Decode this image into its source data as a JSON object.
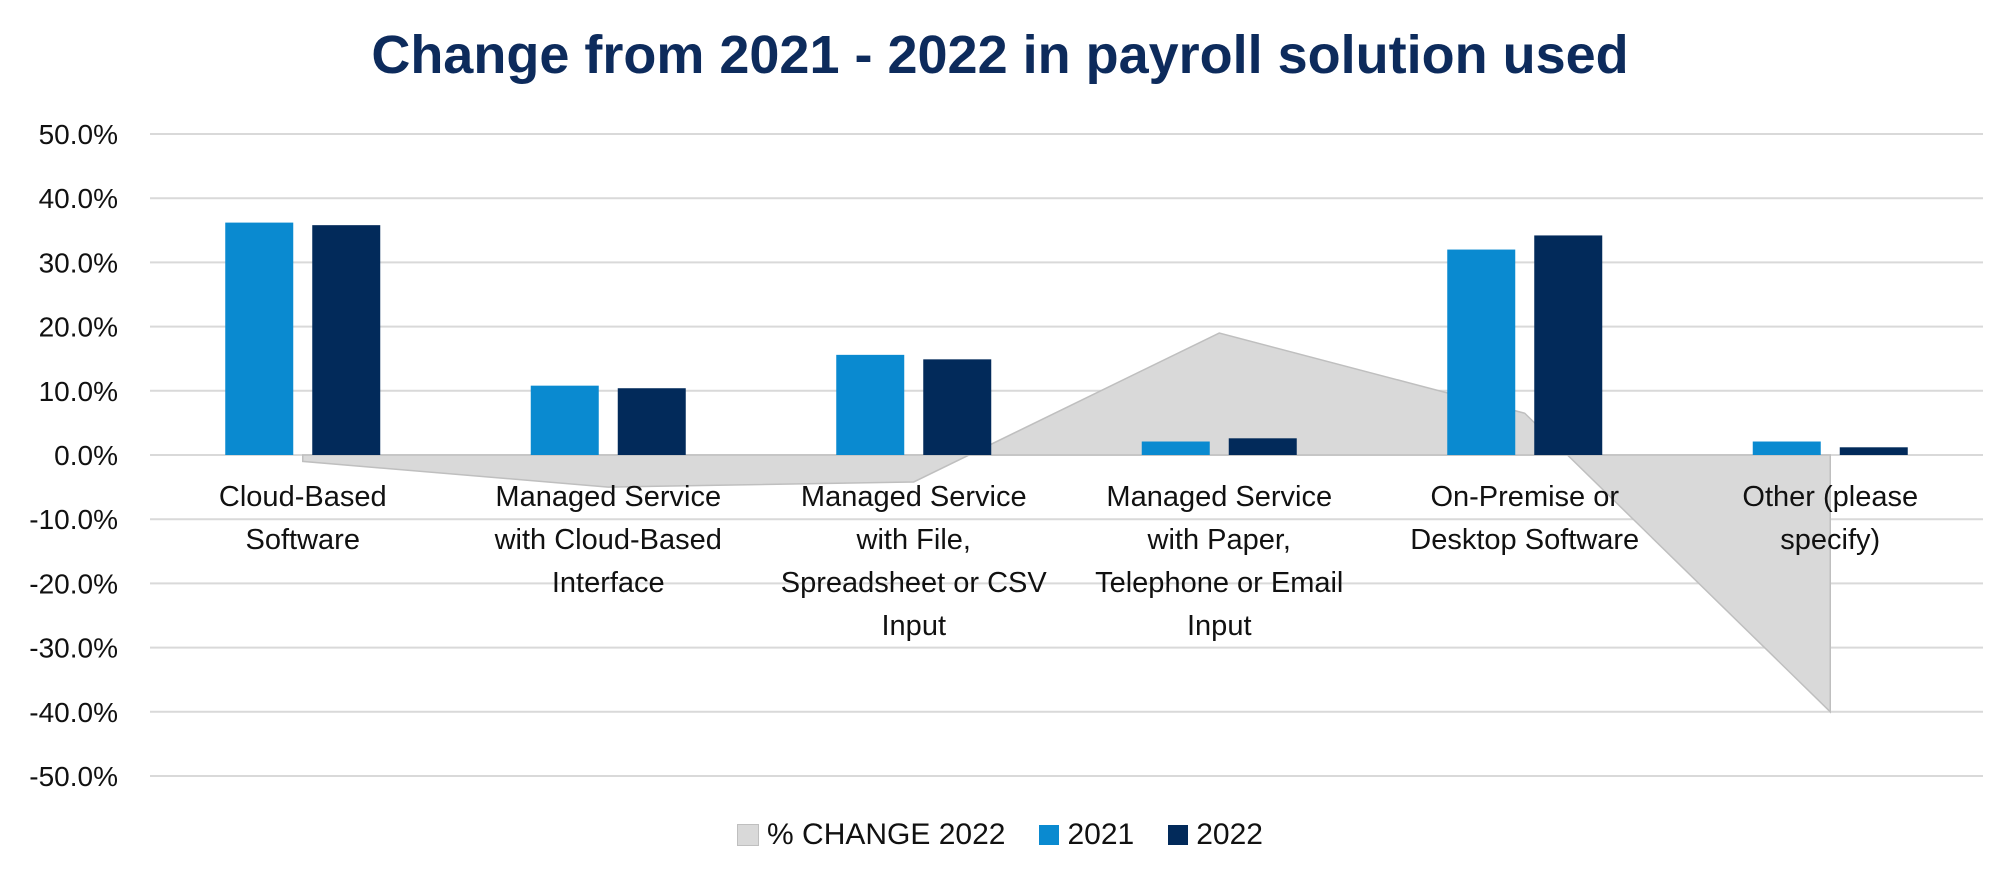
{
  "chart_data": {
    "type": "bar",
    "title": "Change from 2021 - 2022 in payroll solution used",
    "xlabel": "",
    "ylabel": "",
    "ylim": [
      -50,
      50
    ],
    "yticks": [
      "50.0%",
      "40.0%",
      "30.0%",
      "20.0%",
      "10.0%",
      "0.0%",
      "-10.0%",
      "-20.0%",
      "-30.0%",
      "-40.0%",
      "-50.0%"
    ],
    "grid": true,
    "legend_position": "bottom",
    "categories": [
      "Cloud-Based Software",
      "Managed Service with Cloud-Based Interface",
      "Managed Service with File, Spreadsheet or CSV Input",
      "Managed Service with Paper, Telephone or Email Input",
      "On-Premise or Desktop Software",
      "Other (please specify)"
    ],
    "category_lines": [
      [
        "Cloud-Based",
        "Software"
      ],
      [
        "Managed Service",
        "with Cloud-Based",
        "Interface"
      ],
      [
        "Managed Service",
        "with File,",
        "Spreadsheet or CSV",
        "Input"
      ],
      [
        "Managed Service",
        "with Paper,",
        "Telephone or Email",
        "Input"
      ],
      [
        "On-Premise or",
        "Desktop Software"
      ],
      [
        "Other (please",
        "specify)"
      ]
    ],
    "series": [
      {
        "name": "% CHANGE 2022",
        "type": "area",
        "color": "#d9d9d9",
        "values": [
          -1.0,
          -5.0,
          -4.2,
          19.0,
          6.5,
          -40.0
        ]
      },
      {
        "name": "2021",
        "type": "bar",
        "color": "#0a8ad0",
        "values": [
          36.2,
          10.8,
          15.6,
          2.1,
          32.0,
          2.1
        ]
      },
      {
        "name": "2022",
        "type": "bar",
        "color": "#022a5a",
        "values": [
          35.8,
          10.4,
          14.9,
          2.6,
          34.2,
          1.2
        ]
      }
    ]
  }
}
